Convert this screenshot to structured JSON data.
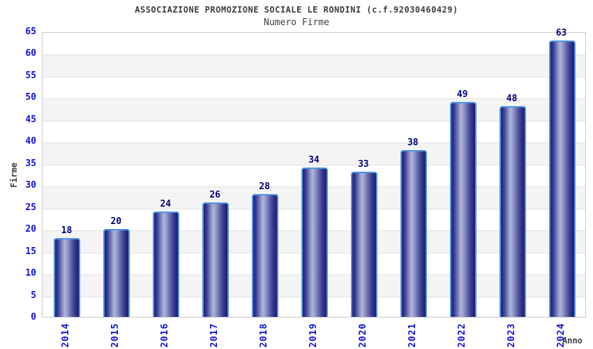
{
  "header": {
    "title": "ASSOCIAZIONE PROMOZIONE SOCIALE LE RONDINI (c.f.92030460429)",
    "subtitle": "Numero Firme"
  },
  "chart_data": {
    "type": "bar",
    "title": "ASSOCIAZIONE PROMOZIONE SOCIALE LE RONDINI (c.f.92030460429)",
    "subtitle": "Numero Firme",
    "categories": [
      "2014",
      "2015",
      "2016",
      "2017",
      "2018",
      "2019",
      "2020",
      "2021",
      "2022",
      "2023",
      "2024"
    ],
    "values": [
      18,
      20,
      24,
      26,
      28,
      34,
      33,
      38,
      49,
      48,
      63
    ],
    "xlabel": "Anno",
    "ylabel": "Firme",
    "ylim": [
      0,
      65
    ],
    "ytick_step": 5,
    "yticks": [
      0,
      5,
      10,
      15,
      20,
      25,
      30,
      35,
      40,
      45,
      50,
      55,
      60,
      65
    ],
    "grid": "horizontal-alternating-bands",
    "legend_position": "none",
    "bar_value_labels": true
  },
  "colors": {
    "title_text": "#3d3d3d",
    "axis_tick_label": "#0f0fdd",
    "bar_value_label": "#00007e",
    "bar_border": "#4e96e0",
    "bar_dark": "#1b1b74",
    "bar_highlight": "#aeb4da",
    "band_gray": "#f4f4f4",
    "band_line": "#e2e2e2",
    "plot_border": "#c9c9c9",
    "background": "#ffffff"
  }
}
